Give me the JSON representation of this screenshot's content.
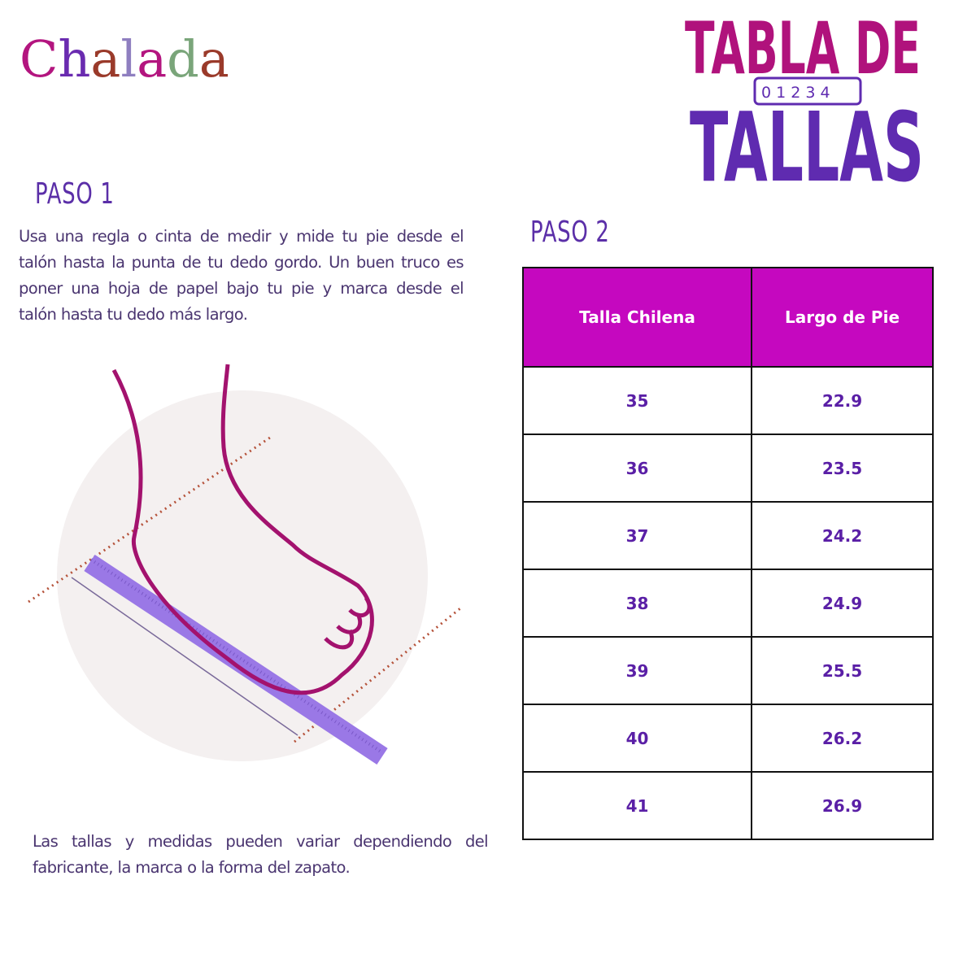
{
  "brand": {
    "logo_text": "Chalada",
    "logo_colors": [
      "#b3157f",
      "#6a2bb0",
      "#9a3a2a",
      "#8f7fc0",
      "#b3157f",
      "#7aa57a",
      "#9a3a2a"
    ]
  },
  "title": {
    "line1": "TABLA DE",
    "line2": "TALLAS",
    "ruler_numbers": [
      "0",
      "1",
      "2",
      "3",
      "4"
    ],
    "color1": "#b0127c",
    "color2": "#5f2bb0"
  },
  "step1": {
    "heading": "PASO 1",
    "lines": [
      "Usa una regla o cinta de medir y mide tu pie desde el",
      "talón hasta la punta de tu dedo gordo. Un buen truco es",
      "poner una hoja de papel bajo tu pie y marca desde el",
      "talón hasta tu dedo más largo."
    ]
  },
  "step2": {
    "heading": "PASO 2",
    "table": {
      "headers": [
        "Talla Chilena",
        "Largo de Pie"
      ],
      "rows": [
        [
          "35",
          "22.9"
        ],
        [
          "36",
          "23.5"
        ],
        [
          "37",
          "24.2"
        ],
        [
          "38",
          "24.9"
        ],
        [
          "39",
          "25.5"
        ],
        [
          "40",
          "26.2"
        ],
        [
          "41",
          "26.9"
        ]
      ],
      "header_color": "#c508bf",
      "value_color": "#5a1fa6"
    }
  },
  "note": {
    "lines": [
      "Las tallas y medidas pueden variar dependiendo del",
      "fabricante, la marca o la forma del zapato."
    ]
  },
  "illustration": {
    "icon": "foot-measure-illustration",
    "foot_color": "#a3126e",
    "ruler_color": "#9a78e6",
    "circle_color": "#f4f0f0"
  }
}
